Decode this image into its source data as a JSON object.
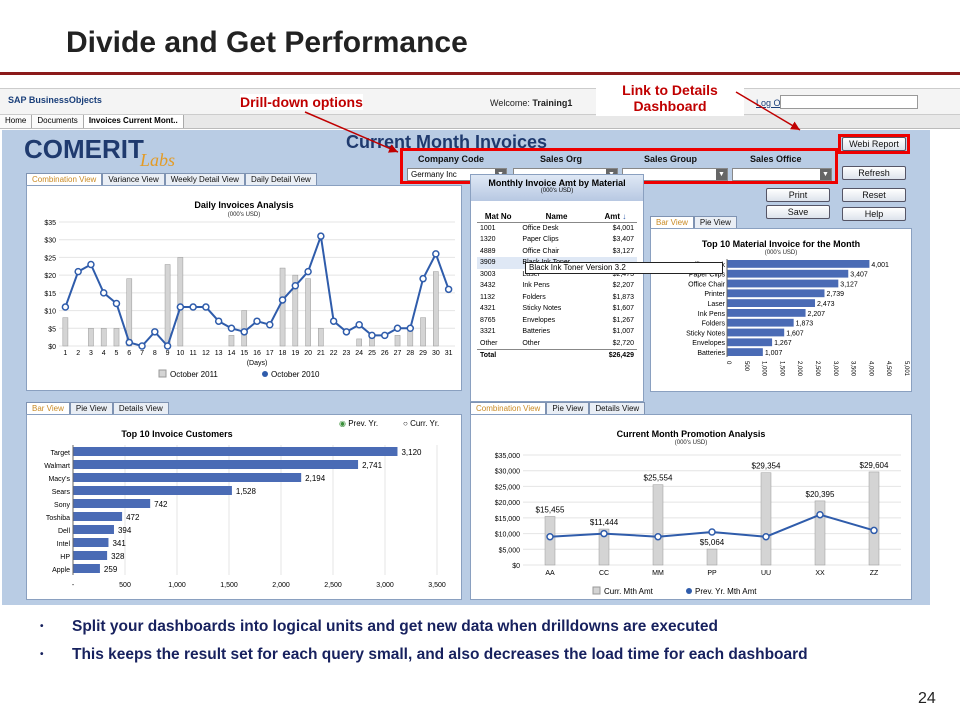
{
  "slide": {
    "title": "Divide and Get Performance",
    "annotation_drill": "Drill-down options",
    "annotation_link": "Link to Details Dashboard",
    "bullets": [
      "Split your dashboards into logical units and get new data when drilldowns are executed",
      "This keeps the result set for each query small, and also decreases the load time for each dashboard"
    ],
    "page_number": "24"
  },
  "sap": {
    "logo": "SAP BusinessObjects",
    "welcome_label": "Welcome:",
    "user": "Training1",
    "logoff": "Log Off",
    "tabs": [
      "Home",
      "Documents",
      "Invoices Current Mont.."
    ]
  },
  "dashboard": {
    "logo_main": "COMERIT",
    "logo_sub": "Labs",
    "title": "Current Month Invoices",
    "filters": [
      {
        "label": "Company Code",
        "value": "Germany Inc"
      },
      {
        "label": "Sales Org",
        "value": ""
      },
      {
        "label": "Sales Group",
        "value": ""
      },
      {
        "label": "Sales Office",
        "value": ""
      }
    ],
    "buttons": {
      "webi": "Webi Report",
      "refresh": "Refresh",
      "print": "Print",
      "reset": "Reset",
      "save": "Save",
      "help": "Help"
    },
    "tabs_top_left": [
      "Combination View",
      "Variance View",
      "Weekly Detail View",
      "Daily Detail View"
    ],
    "tabs_bottom_left": [
      "Bar View",
      "Pie View",
      "Details View"
    ],
    "tabs_material": [
      "Bar View",
      "Pie View"
    ],
    "tabs_bottom_right": [
      "Combination View",
      "Pie View",
      "Details View"
    ],
    "material_table": {
      "title": "Monthly Invoice Amt by Material",
      "subtitle": "(000's USD)",
      "headers": [
        "Mat No",
        "Name",
        "Amt"
      ],
      "rows": [
        [
          "1001",
          "Office Desk",
          "$4,001"
        ],
        [
          "1320",
          "Paper Clips",
          "$3,407"
        ],
        [
          "4889",
          "Office Chair",
          "$3,127"
        ],
        [
          "3909",
          "Black Ink Toner",
          ""
        ],
        [
          "3003",
          "Laser",
          "$2,473"
        ],
        [
          "3432",
          "Ink Pens",
          "$2,207"
        ],
        [
          "1132",
          "Folders",
          "$1,873"
        ],
        [
          "4321",
          "Sticky Notes",
          "$1,607"
        ],
        [
          "8765",
          "Envelopes",
          "$1,267"
        ],
        [
          "3321",
          "Batteries",
          "$1,007"
        ],
        [
          "Other",
          "Other",
          "$2,720"
        ]
      ],
      "total_label": "Total",
      "total_value": "$26,429",
      "tooltip": "Black Ink Toner Version 3.2"
    },
    "radio": {
      "prev": "Prev. Yr.",
      "curr": "Curr. Yr."
    }
  },
  "chart_data": [
    {
      "type": "bar",
      "title": "Daily Invoices Analysis",
      "subtitle": "(000's USD)",
      "xlabel": "(Days)",
      "ylim": [
        0,
        35
      ],
      "yticks": [
        "$0",
        "$5",
        "$10",
        "$15",
        "$20",
        "$25",
        "$30",
        "$35"
      ],
      "categories": [
        "1",
        "2",
        "3",
        "4",
        "5",
        "6",
        "7",
        "8",
        "9",
        "10",
        "11",
        "12",
        "13",
        "14",
        "15",
        "16",
        "17",
        "18",
        "19",
        "20",
        "21",
        "22",
        "23",
        "24",
        "25",
        "26",
        "27",
        "28",
        "29",
        "30",
        "31"
      ],
      "series": [
        {
          "name": "October 2011",
          "kind": "bar",
          "values": [
            8,
            0,
            5,
            5,
            5,
            19,
            0,
            0,
            23,
            25,
            0,
            0,
            0,
            3,
            10,
            0,
            0,
            22,
            20,
            19,
            5,
            0,
            0,
            2,
            3,
            0,
            3,
            5,
            8,
            21,
            0
          ]
        },
        {
          "name": "October 2010",
          "kind": "line",
          "values": [
            11,
            21,
            23,
            15,
            12,
            1,
            0,
            4,
            0,
            11,
            11,
            11,
            7,
            5,
            4,
            7,
            6,
            13,
            17,
            21,
            31,
            7,
            4,
            6,
            3,
            3,
            5,
            5,
            19,
            26,
            16
          ]
        }
      ],
      "legend": "bottom"
    },
    {
      "type": "bar",
      "orientation": "horizontal",
      "title": "Top 10 Material Invoice for the Month",
      "subtitle": "(000's USD)",
      "categories": [
        "Office Desk",
        "Paper Clips",
        "Office Chair",
        "Printer",
        "Laser",
        "Ink Pens",
        "Folders",
        "Sticky Notes",
        "Envelopes",
        "Batteries"
      ],
      "values": [
        4001,
        3407,
        3127,
        2739,
        2473,
        2207,
        1873,
        1607,
        1267,
        1007
      ],
      "xticks": [
        "0",
        "500",
        "1,000",
        "1,500",
        "2,000",
        "2,500",
        "3,000",
        "3,500",
        "4,000",
        "4,500",
        "5,001"
      ],
      "xlim": [
        0,
        5001
      ]
    },
    {
      "type": "bar",
      "orientation": "horizontal",
      "title": "Top 10 Invoice Customers",
      "categories": [
        "Target",
        "Walmart",
        "Macy's",
        "Sears",
        "Sony",
        "Toshiba",
        "Dell",
        "Intel",
        "HP",
        "Apple"
      ],
      "values": [
        3120,
        2741,
        2194,
        1528,
        742,
        472,
        394,
        341,
        328,
        259
      ],
      "xticks": [
        "-",
        "500",
        "1,000",
        "1,500",
        "2,000",
        "2,500",
        "3,000",
        "3,500"
      ],
      "xlim": [
        0,
        3500
      ]
    },
    {
      "type": "bar",
      "title": "Current Month Promotion Analysis",
      "subtitle": "(000's USD)",
      "categories": [
        "AA",
        "CC",
        "MM",
        "PP",
        "UU",
        "XX",
        "ZZ"
      ],
      "yticks": [
        "$0",
        "$5,000",
        "$10,000",
        "$15,000",
        "$20,000",
        "$25,000",
        "$30,000",
        "$35,000"
      ],
      "ylim": [
        0,
        35000
      ],
      "series": [
        {
          "name": "Curr. Mth Amt",
          "kind": "bar",
          "values": [
            15455,
            11444,
            25554,
            5064,
            29354,
            20395,
            29604
          ],
          "labels": [
            "$15,455",
            "$11,444",
            "$25,554",
            "$5,064",
            "$29,354",
            "$20,395",
            "$29,604"
          ]
        },
        {
          "name": "Prev. Yr. Mth Amt",
          "kind": "line",
          "values": [
            9000,
            10000,
            9000,
            10500,
            9000,
            16000,
            11000
          ]
        }
      ],
      "legend": "bottom"
    }
  ],
  "colors": {
    "accent_red": "#c00000",
    "dash_bg": "#b9cce4",
    "bar_blue": "#4a6bb5",
    "line_blue": "#2f5cab",
    "bar_gray": "#cfcfcf"
  }
}
